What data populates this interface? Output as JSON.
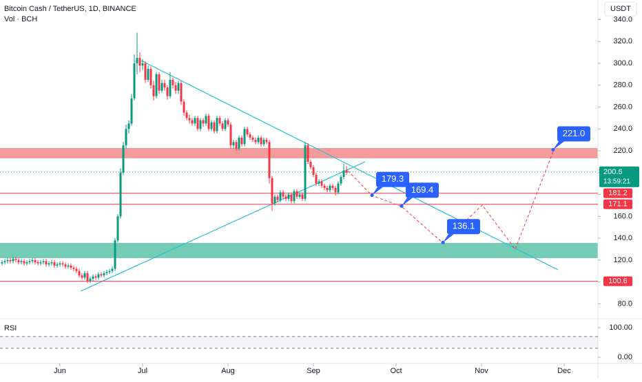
{
  "header": {
    "symbol": "Bitcoin Cash / TetherUS, 1D, BINANCE",
    "volume_label": "Vol · BCH",
    "currency": "USDT"
  },
  "chart_data": {
    "type": "candlestick",
    "up_color": "#089981",
    "down_color": "#f23645",
    "xlim": [
      -21.75,
      195.25
    ],
    "xticks": [
      {
        "value": 0,
        "label": "Jun"
      },
      {
        "value": 30,
        "label": "Jul"
      },
      {
        "value": 61,
        "label": "Aug"
      },
      {
        "value": 92,
        "label": "Sep"
      },
      {
        "value": 122,
        "label": "Oct"
      },
      {
        "value": 153,
        "label": "Nov"
      },
      {
        "value": 183,
        "label": "Dec"
      }
    ],
    "ylim": [
      67,
      358
    ],
    "yticks": [
      {
        "value": 80,
        "label": "80.0"
      },
      {
        "value": 100,
        "label": "100.0"
      },
      {
        "value": 120,
        "label": "120.0"
      },
      {
        "value": 140,
        "label": "140.0"
      },
      {
        "value": 160,
        "label": "160.0"
      },
      {
        "value": 180,
        "label": "180.0"
      },
      {
        "value": 200,
        "label": "200.0"
      },
      {
        "value": 220,
        "label": "220.0"
      },
      {
        "value": 240,
        "label": "240.0"
      },
      {
        "value": 260,
        "label": "260.0"
      },
      {
        "value": 280,
        "label": "280.0"
      },
      {
        "value": 300,
        "label": "300.0"
      },
      {
        "value": 320,
        "label": "320.0"
      },
      {
        "value": 340,
        "label": "340.0"
      }
    ],
    "first_day": -21,
    "open": [
      117,
      118,
      119,
      120,
      119,
      121,
      120,
      118,
      119,
      117,
      118,
      119,
      120,
      118,
      117,
      118,
      119,
      116,
      117,
      118,
      115,
      116,
      117,
      116,
      114,
      115,
      113,
      112,
      110,
      106,
      104,
      108,
      101,
      103,
      105,
      104,
      107,
      106,
      108,
      109,
      110,
      112,
      138,
      160,
      200,
      225,
      240,
      245,
      268,
      300,
      305,
      298,
      300,
      285,
      295,
      280,
      270,
      290,
      275,
      282,
      278,
      270,
      285,
      280,
      275,
      282,
      265,
      255,
      250,
      248,
      245,
      250,
      240,
      248,
      245,
      252,
      240,
      246,
      238,
      250,
      245,
      240,
      248,
      244,
      225,
      228,
      222,
      232,
      226,
      240,
      235,
      232,
      230,
      228,
      232,
      226,
      230,
      228,
      195,
      172,
      178,
      175,
      182,
      178,
      176,
      180,
      174,
      183,
      178,
      180,
      176,
      225,
      210,
      205,
      198,
      190,
      192,
      188,
      186,
      184,
      188,
      186,
      182,
      190,
      196,
      202
    ],
    "high": [
      120,
      121,
      122,
      122,
      123,
      123,
      122,
      121,
      121,
      120,
      121,
      122,
      122,
      120,
      120,
      121,
      121,
      119,
      120,
      120,
      118,
      119,
      119,
      118,
      117,
      117,
      115,
      114,
      112,
      108,
      110,
      110,
      105,
      107,
      107,
      109,
      109,
      110,
      111,
      112,
      114,
      140,
      162,
      204,
      228,
      244,
      248,
      272,
      308,
      328,
      310,
      304,
      302,
      298,
      297,
      284,
      292,
      292,
      285,
      285,
      280,
      292,
      287,
      283,
      284,
      284,
      267,
      257,
      253,
      250,
      252,
      252,
      250,
      250,
      254,
      254,
      248,
      248,
      252,
      252,
      247,
      250,
      250,
      246,
      230,
      230,
      234,
      234,
      242,
      242,
      237,
      234,
      232,
      234,
      234,
      232,
      232,
      230,
      197,
      180,
      180,
      184,
      184,
      180,
      182,
      182,
      185,
      185,
      182,
      182,
      228,
      227,
      212,
      207,
      200,
      194,
      194,
      190,
      188,
      190,
      190,
      188,
      192,
      198,
      208,
      206
    ],
    "low": [
      115,
      116,
      117,
      117,
      117,
      118,
      116,
      116,
      115,
      115,
      116,
      117,
      116,
      115,
      115,
      116,
      114,
      114,
      115,
      113,
      113,
      114,
      114,
      112,
      112,
      111,
      110,
      108,
      104,
      102,
      102,
      99,
      99,
      101,
      102,
      102,
      104,
      104,
      106,
      107,
      108,
      110,
      136,
      158,
      198,
      222,
      236,
      243,
      266,
      290,
      292,
      294,
      282,
      283,
      277,
      266,
      268,
      272,
      273,
      275,
      267,
      268,
      277,
      272,
      272,
      262,
      252,
      248,
      245,
      243,
      243,
      238,
      238,
      242,
      243,
      238,
      238,
      236,
      236,
      243,
      238,
      238,
      242,
      222,
      222,
      220,
      220,
      224,
      224,
      233,
      230,
      228,
      226,
      226,
      224,
      224,
      226,
      190,
      165,
      170,
      173,
      173,
      176,
      174,
      174,
      172,
      172,
      176,
      176,
      174,
      174,
      208,
      203,
      196,
      188,
      188,
      186,
      184,
      182,
      182,
      184,
      179,
      180,
      188,
      194,
      198
    ],
    "close": [
      118,
      119,
      120,
      119,
      121,
      120,
      118,
      119,
      117,
      118,
      119,
      120,
      118,
      117,
      118,
      119,
      116,
      117,
      118,
      115,
      116,
      117,
      116,
      114,
      115,
      113,
      112,
      110,
      106,
      104,
      108,
      101,
      103,
      105,
      104,
      107,
      106,
      108,
      109,
      110,
      112,
      138,
      160,
      200,
      225,
      240,
      245,
      268,
      300,
      305,
      298,
      300,
      285,
      295,
      280,
      270,
      290,
      275,
      282,
      278,
      270,
      285,
      280,
      275,
      282,
      265,
      255,
      250,
      248,
      245,
      250,
      240,
      248,
      245,
      252,
      240,
      246,
      238,
      250,
      245,
      240,
      248,
      244,
      225,
      228,
      222,
      232,
      226,
      240,
      235,
      232,
      230,
      228,
      232,
      226,
      230,
      228,
      195,
      172,
      178,
      175,
      182,
      178,
      176,
      180,
      174,
      183,
      178,
      180,
      176,
      225,
      210,
      205,
      198,
      190,
      192,
      188,
      186,
      184,
      188,
      186,
      182,
      190,
      196,
      202,
      200
    ],
    "price_levels": [
      {
        "value": 181.2,
        "color": "#f23645"
      },
      {
        "value": 171.1,
        "color": "#f23645"
      },
      {
        "value": 100.6,
        "color": "#f23645"
      }
    ],
    "last_price": {
      "value": 200.6,
      "countdown": "13:59:21",
      "color": "#089981"
    },
    "targets": [
      {
        "value": 179.3,
        "label": "179.3"
      },
      {
        "value": 169.4,
        "label": "169.4"
      },
      {
        "value": 136.1,
        "label": "136.1"
      },
      {
        "value": 221,
        "label": "221.0"
      }
    ],
    "rsi": {
      "label": "RSI",
      "yticks": [
        {
          "value": 100,
          "label": "100.00"
        },
        {
          "value": 0,
          "label": "0.00"
        }
      ]
    }
  }
}
